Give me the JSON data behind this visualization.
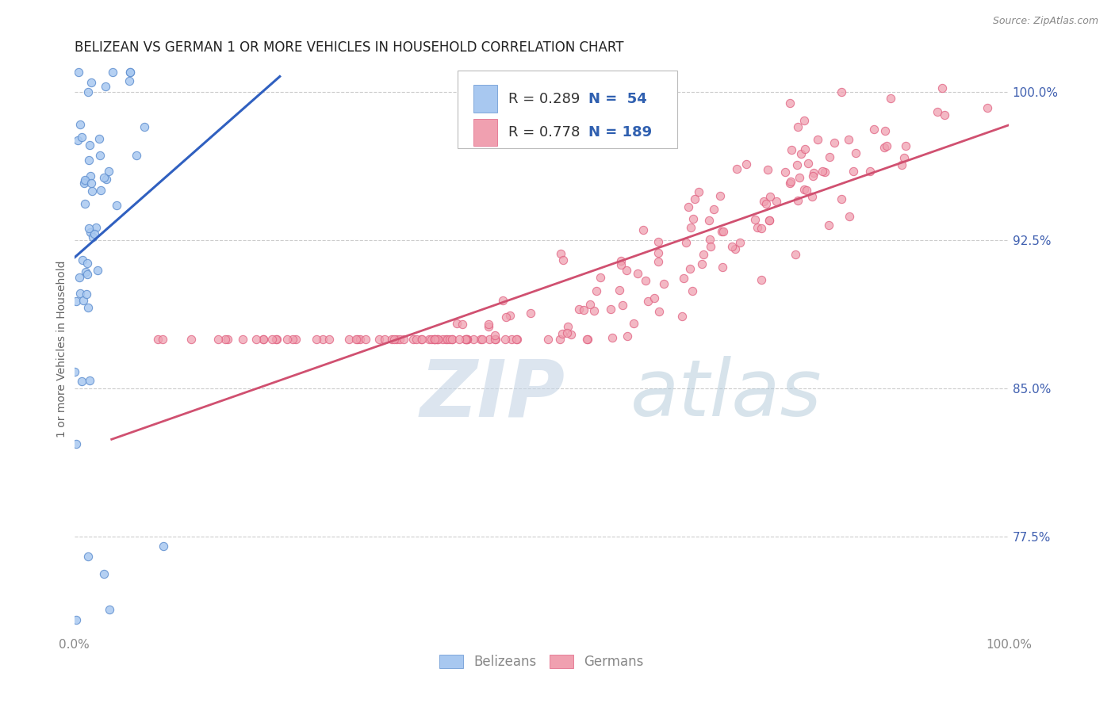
{
  "title": "BELIZEAN VS GERMAN 1 OR MORE VEHICLES IN HOUSEHOLD CORRELATION CHART",
  "source": "Source: ZipAtlas.com",
  "ylabel": "1 or more Vehicles in Household",
  "xlim": [
    0.0,
    1.0
  ],
  "ylim": [
    0.725,
    1.015
  ],
  "yticks": [
    0.775,
    0.85,
    0.925,
    1.0
  ],
  "ytick_labels": [
    "77.5%",
    "85.0%",
    "92.5%",
    "100.0%"
  ],
  "xtick_labels": [
    "0.0%",
    "100.0%"
  ],
  "belizean_R": 0.289,
  "belizean_N": 54,
  "german_R": 0.778,
  "german_N": 189,
  "belizean_color": "#a8c8f0",
  "german_color": "#f0a0b0",
  "belizean_edge_color": "#6090d0",
  "german_edge_color": "#e06080",
  "belizean_line_color": "#3060c0",
  "german_line_color": "#d05070",
  "title_fontsize": 12,
  "label_fontsize": 10,
  "tick_fontsize": 11,
  "legend_fontsize": 13,
  "watermark_zip_color": "#c8d8e8",
  "watermark_atlas_color": "#b8c8d8",
  "background_color": "#ffffff",
  "grid_color": "#cccccc",
  "ytick_color": "#4060b0",
  "xtick_color": "#888888",
  "source_color": "#888888",
  "ylabel_color": "#666666",
  "legend_text_color": "#333333",
  "legend_value_color": "#3060b0"
}
